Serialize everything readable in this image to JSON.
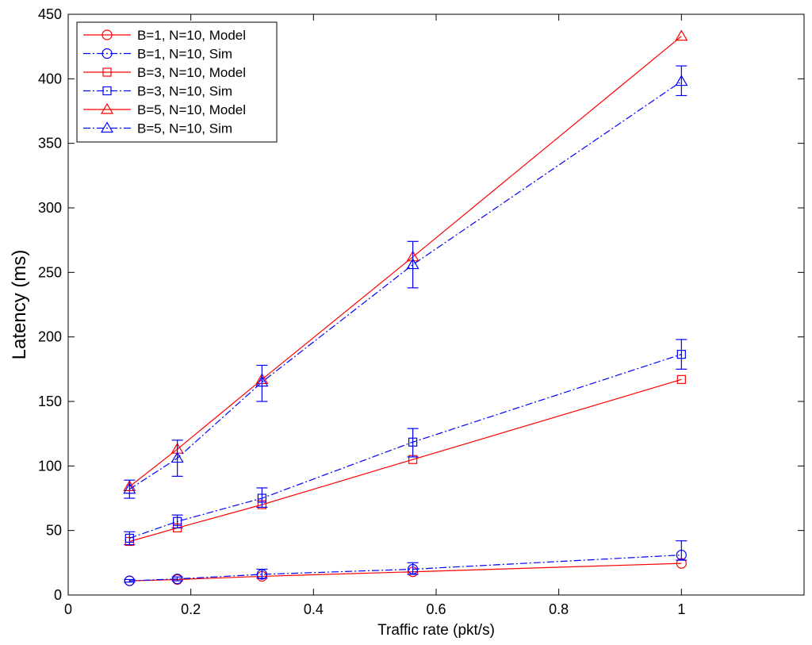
{
  "chart_data": {
    "type": "line",
    "title": "",
    "xlabel": "Traffic rate (pkt/s)",
    "ylabel": "Latency (ms)",
    "xlim": [
      0,
      1.2
    ],
    "ylim": [
      0,
      450
    ],
    "x_ticks": [
      0,
      0.2,
      0.4,
      0.6,
      0.8,
      1
    ],
    "x_tick_labels": [
      "0",
      "0.2",
      "0.4",
      "0.6",
      "0.8",
      "1"
    ],
    "y_ticks": [
      0,
      50,
      100,
      150,
      200,
      250,
      300,
      350,
      400,
      450
    ],
    "y_tick_labels": [
      "0",
      "50",
      "100",
      "150",
      "200",
      "250",
      "300",
      "350",
      "400",
      "450"
    ],
    "grid": false,
    "legend_position": "top-left",
    "x": [
      0.1,
      0.178,
      0.316,
      0.562,
      1.0
    ],
    "series": [
      {
        "name": "B=1, N=10, Model",
        "color": "#ff0000",
        "style": "solid",
        "marker": "circle",
        "values": [
          11,
          12,
          14.5,
          18,
          24.5
        ]
      },
      {
        "name": "B=1, N=10, Sim",
        "color": "#0000ff",
        "style": "dashdot",
        "marker": "circle",
        "values": [
          11,
          12.5,
          16,
          20,
          31
        ],
        "err_low": [
          10,
          11,
          13,
          16,
          27
        ],
        "err_high": [
          12,
          14,
          20,
          25,
          42
        ]
      },
      {
        "name": "B=3, N=10, Model",
        "color": "#ff0000",
        "style": "solid",
        "marker": "square",
        "values": [
          41.5,
          52,
          70,
          105,
          167
        ]
      },
      {
        "name": "B=3, N=10, Sim",
        "color": "#0000ff",
        "style": "dashdot",
        "marker": "square",
        "values": [
          44,
          57,
          75,
          118.5,
          186.5
        ],
        "err_low": [
          39,
          52,
          68,
          107,
          175
        ],
        "err_high": [
          49,
          62,
          83,
          129,
          198
        ]
      },
      {
        "name": "B=5, N=10, Model",
        "color": "#ff0000",
        "style": "solid",
        "marker": "triangle",
        "values": [
          84,
          113,
          167,
          262,
          433
        ]
      },
      {
        "name": "B=5, N=10, Sim",
        "color": "#0000ff",
        "style": "dashdot",
        "marker": "triangle",
        "values": [
          82,
          106,
          165,
          256,
          398
        ],
        "err_low": [
          75,
          92,
          150,
          238,
          387
        ],
        "err_high": [
          89,
          120,
          178,
          274,
          410
        ]
      }
    ]
  }
}
